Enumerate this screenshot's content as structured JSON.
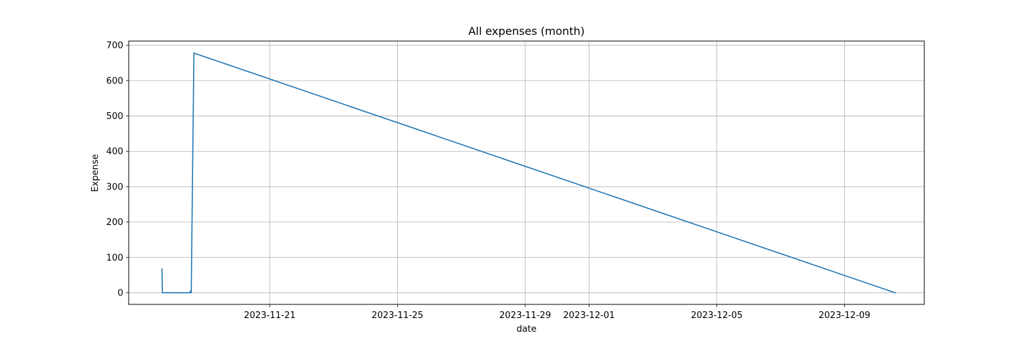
{
  "chart_data": {
    "type": "line",
    "title": "All expenses (month)",
    "xlabel": "date",
    "ylabel": "Expense",
    "x_type": "date",
    "xlim": [
      "2023-11-16T14:00",
      "2023-12-11T12:00"
    ],
    "ylim": [
      -33,
      712
    ],
    "xticks": [
      "2023-11-21",
      "2023-11-25",
      "2023-11-29",
      "2023-12-01",
      "2023-12-05",
      "2023-12-09"
    ],
    "yticks": [
      0,
      100,
      200,
      300,
      400,
      500,
      600,
      700
    ],
    "grid": true,
    "series": [
      {
        "color": "#1f77b4",
        "points": [
          {
            "x": "2023-11-17T15:00",
            "y": 67
          },
          {
            "x": "2023-11-17T15:20",
            "y": 0
          },
          {
            "x": "2023-11-18T04:00",
            "y": 0
          },
          {
            "x": "2023-11-18T06:00",
            "y": 0
          },
          {
            "x": "2023-11-18T12:00",
            "y": 0
          },
          {
            "x": "2023-11-18T12:30",
            "y": 5
          },
          {
            "x": "2023-11-18T13:00",
            "y": 0
          },
          {
            "x": "2023-11-18T15:00",
            "y": 678
          },
          {
            "x": "2023-12-10T14:00",
            "y": 0
          }
        ]
      }
    ]
  }
}
